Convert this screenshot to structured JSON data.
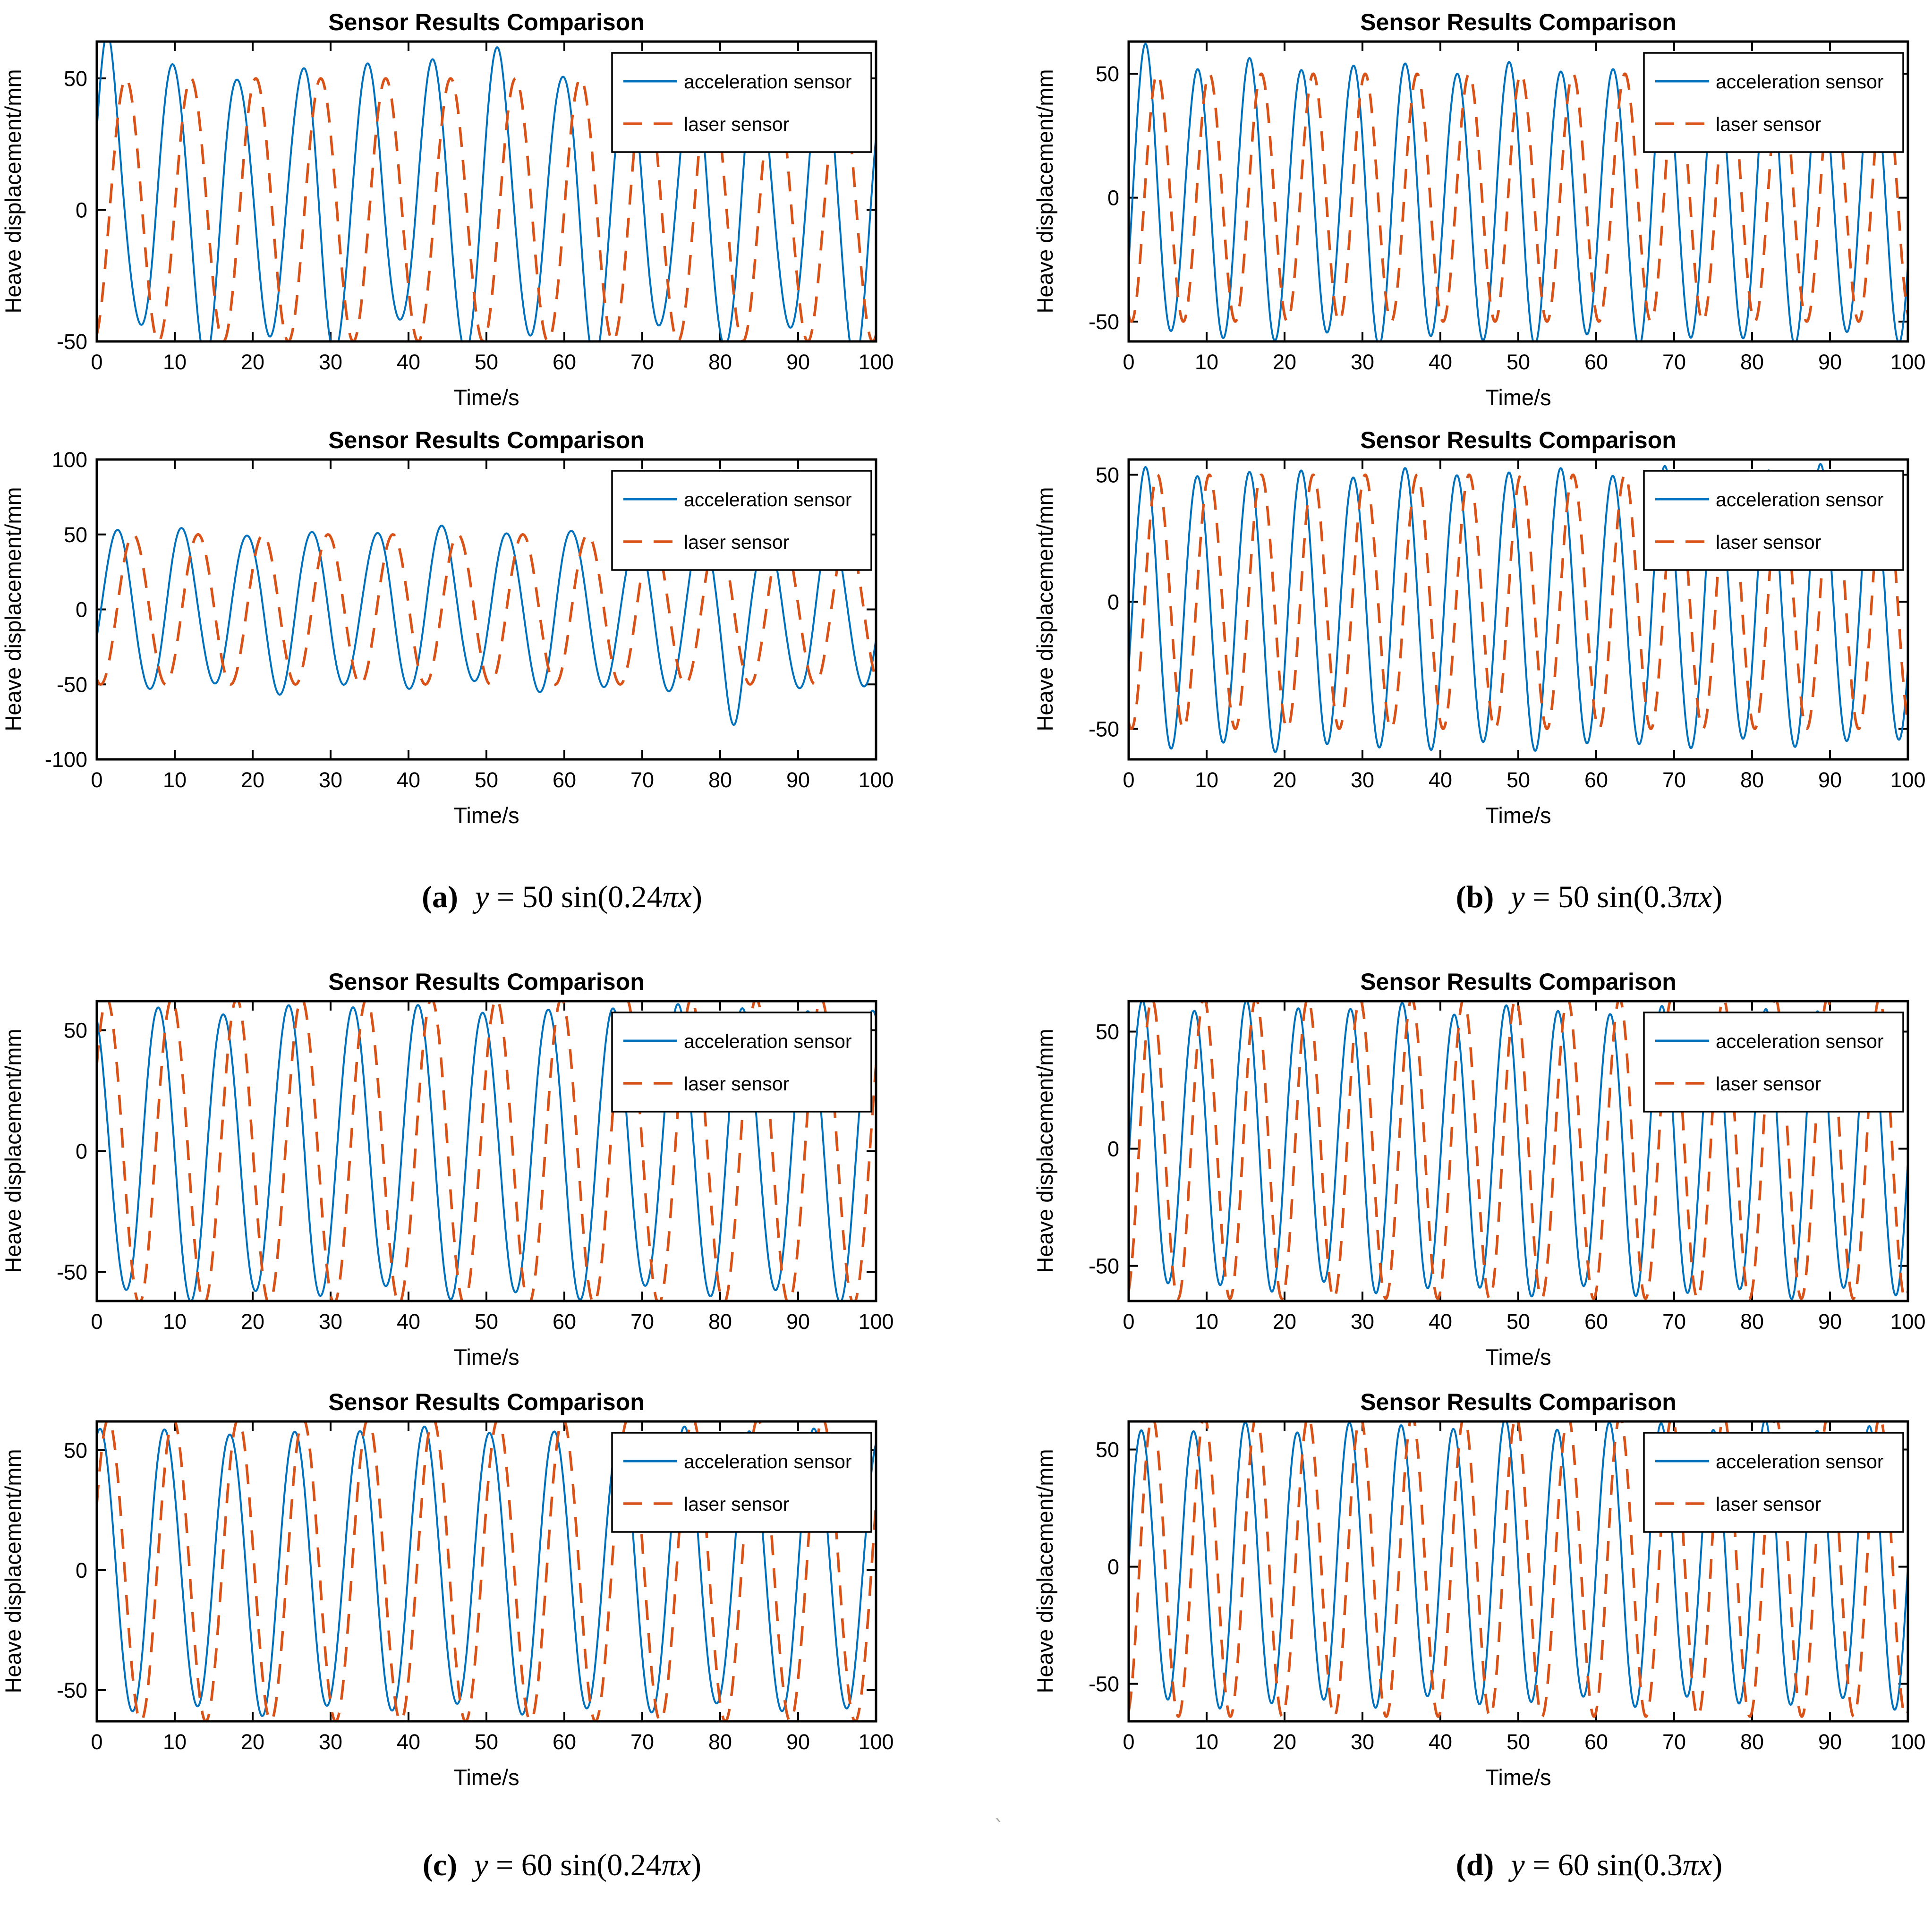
{
  "page": {
    "background": "#ffffff",
    "stray_mark": "`"
  },
  "captions": [
    {
      "label": "(a)",
      "var": "y",
      "mid": " = 50 sin(0.24",
      "pi_var": "πx",
      "end": ")"
    },
    {
      "label": "(b)",
      "var": "y",
      "mid": " = 50 sin(0.3",
      "pi_var": "πx",
      "end": ")"
    },
    {
      "label": "(c)",
      "var": "y",
      "mid": " = 60 sin(0.24",
      "pi_var": "πx",
      "end": ")"
    },
    {
      "label": "(d)",
      "var": "y",
      "mid": " = 60 sin(0.3",
      "pi_var": "πx",
      "end": ")"
    }
  ],
  "chart_data": [
    {
      "id": "a-top",
      "type": "line",
      "title": "Sensor Results Comparison",
      "xlabel": "Time/s",
      "ylabel": "Heave displacement/mm",
      "xlim": [
        0,
        100
      ],
      "xticks": [
        0,
        10,
        20,
        30,
        40,
        50,
        60,
        70,
        80,
        90,
        100
      ],
      "ylim": [
        -50,
        64
      ],
      "yticks": [
        -50,
        0,
        50
      ],
      "legend": {
        "position": "upper-right",
        "entries": [
          "acceleration sensor",
          "laser sensor"
        ]
      },
      "series": [
        {
          "name": "acceleration sensor",
          "color": "#0072BD",
          "line_style": "solid",
          "line_width": 4,
          "model": {
            "kind": "sine",
            "amplitude": 52,
            "omega_pi_coeff": 0.24,
            "phase_rad": 0.5,
            "offset": 2,
            "amp_jitter": 0.16,
            "jitter_seed": 3,
            "anomalies": [
              {
                "t": 1.4,
                "scale": 1.22
              },
              {
                "t": 52,
                "scale": 1.2
              },
              {
                "t": 93.5,
                "scale": 1.18
              }
            ]
          }
        },
        {
          "name": "laser sensor",
          "color": "#D95319",
          "line_style": "dashed",
          "line_width": 5.5,
          "model": {
            "kind": "sine",
            "amplitude": 50,
            "omega_pi_coeff": 0.24,
            "phase_rad": -1.25,
            "offset": 0,
            "amp_jitter": 0,
            "jitter_seed": 0,
            "anomalies": []
          }
        }
      ]
    },
    {
      "id": "a-bottom",
      "type": "line",
      "title": "Sensor Results Comparison",
      "xlabel": "Time/s",
      "ylabel": "Heave displacement/mm",
      "xlim": [
        0,
        100
      ],
      "xticks": [
        0,
        10,
        20,
        30,
        40,
        50,
        60,
        70,
        80,
        90,
        100
      ],
      "ylim": [
        -100,
        100
      ],
      "yticks": [
        -100,
        -50,
        0,
        50,
        100
      ],
      "legend": {
        "position": "upper-right",
        "entries": [
          "acceleration sensor",
          "laser sensor"
        ]
      },
      "series": [
        {
          "name": "acceleration sensor",
          "color": "#0072BD",
          "line_style": "solid",
          "line_width": 4,
          "model": {
            "kind": "sine",
            "amplitude": 52,
            "omega_pi_coeff": 0.24,
            "phase_rad": -0.4,
            "offset": 0,
            "amp_jitter": 0.1,
            "jitter_seed": 5,
            "anomalies": [
              {
                "t": 81.8,
                "scale": 1.6
              }
            ]
          }
        },
        {
          "name": "laser sensor",
          "color": "#D95319",
          "line_style": "dashed",
          "line_width": 5.5,
          "model": {
            "kind": "sine",
            "amplitude": 50,
            "omega_pi_coeff": 0.24,
            "phase_rad": -1.95,
            "offset": 0,
            "amp_jitter": 0,
            "jitter_seed": 0,
            "anomalies": []
          }
        }
      ]
    },
    {
      "id": "b-top",
      "type": "line",
      "title": "Sensor Results Comparison",
      "xlabel": "Time/s",
      "ylabel": "Heave displacement/mm",
      "xlim": [
        0,
        100
      ],
      "xticks": [
        0,
        10,
        20,
        30,
        40,
        50,
        60,
        70,
        80,
        90,
        100
      ],
      "ylim": [
        -58,
        63
      ],
      "yticks": [
        -50,
        0,
        50
      ],
      "legend": {
        "position": "upper-right",
        "entries": [
          "acceleration sensor",
          "laser sensor"
        ]
      },
      "series": [
        {
          "name": "acceleration sensor",
          "color": "#0072BD",
          "line_style": "solid",
          "line_width": 4,
          "model": {
            "kind": "sine",
            "amplitude": 55,
            "omega_pi_coeff": 0.3,
            "phase_rad": -0.45,
            "offset": -1,
            "amp_jitter": 0.08,
            "jitter_seed": 2,
            "anomalies": [
              {
                "t": 2.1,
                "scale": 1.12
              }
            ]
          }
        },
        {
          "name": "laser sensor",
          "color": "#D95319",
          "line_style": "dashed",
          "line_width": 5.5,
          "model": {
            "kind": "sine",
            "amplitude": 50,
            "omega_pi_coeff": 0.3,
            "phase_rad": -1.9,
            "offset": 0,
            "amp_jitter": 0,
            "jitter_seed": 0,
            "anomalies": []
          }
        }
      ]
    },
    {
      "id": "b-bottom",
      "type": "line",
      "title": "Sensor Results Comparison",
      "xlabel": "Time/s",
      "ylabel": "Heave displacement/mm",
      "xlim": [
        0,
        100
      ],
      "xticks": [
        0,
        10,
        20,
        30,
        40,
        50,
        60,
        70,
        80,
        90,
        100
      ],
      "ylim": [
        -62,
        56
      ],
      "yticks": [
        -50,
        0,
        50
      ],
      "legend": {
        "position": "upper-right",
        "entries": [
          "acceleration sensor",
          "laser sensor"
        ]
      },
      "series": [
        {
          "name": "acceleration sensor",
          "color": "#0072BD",
          "line_style": "solid",
          "line_width": 4,
          "model": {
            "kind": "sine",
            "amplitude": 54,
            "omega_pi_coeff": 0.3,
            "phase_rad": -0.45,
            "offset": -2,
            "amp_jitter": 0.06,
            "jitter_seed": 7,
            "anomalies": []
          }
        },
        {
          "name": "laser sensor",
          "color": "#D95319",
          "line_style": "dashed",
          "line_width": 5.5,
          "model": {
            "kind": "sine",
            "amplitude": 50,
            "omega_pi_coeff": 0.3,
            "phase_rad": -1.9,
            "offset": 0,
            "amp_jitter": 0,
            "jitter_seed": 0,
            "anomalies": []
          }
        }
      ]
    },
    {
      "id": "c-top",
      "type": "line",
      "title": "Sensor Results Comparison",
      "xlabel": "Time/s",
      "ylabel": "Heave displacement/mm",
      "xlim": [
        0,
        100
      ],
      "xticks": [
        0,
        10,
        20,
        30,
        40,
        50,
        60,
        70,
        80,
        90,
        100
      ],
      "ylim": [
        -62,
        62
      ],
      "yticks": [
        -50,
        0,
        50
      ],
      "legend": {
        "position": "upper-right",
        "entries": [
          "acceleration sensor",
          "laser sensor"
        ]
      },
      "series": [
        {
          "name": "acceleration sensor",
          "color": "#0072BD",
          "line_style": "solid",
          "line_width": 4,
          "model": {
            "kind": "sine",
            "amplitude": 59,
            "omega_pi_coeff": 0.24,
            "phase_rad": 1.9,
            "offset": 0,
            "amp_jitter": 0.06,
            "jitter_seed": 4,
            "anomalies": []
          }
        },
        {
          "name": "laser sensor",
          "color": "#D95319",
          "line_style": "dashed",
          "line_width": 5.5,
          "model": {
            "kind": "sine",
            "amplitude": 63,
            "omega_pi_coeff": 0.24,
            "phase_rad": 0.6,
            "offset": 0,
            "amp_jitter": 0,
            "jitter_seed": 0,
            "anomalies": []
          }
        }
      ]
    },
    {
      "id": "c-bottom",
      "type": "line",
      "title": "Sensor Results Comparison",
      "xlabel": "Time/s",
      "ylabel": "Heave displacement/mm",
      "xlim": [
        0,
        100
      ],
      "xticks": [
        0,
        10,
        20,
        30,
        40,
        50,
        60,
        70,
        80,
        90,
        100
      ],
      "ylim": [
        -63,
        62
      ],
      "yticks": [
        -50,
        0,
        50
      ],
      "legend": {
        "position": "upper-right",
        "entries": [
          "acceleration sensor",
          "laser sensor"
        ]
      },
      "series": [
        {
          "name": "acceleration sensor",
          "color": "#0072BD",
          "line_style": "solid",
          "line_width": 4,
          "model": {
            "kind": "sine",
            "amplitude": 58,
            "omega_pi_coeff": 0.24,
            "phase_rad": 1.27,
            "offset": 0,
            "amp_jitter": 0.05,
            "jitter_seed": 6,
            "anomalies": []
          }
        },
        {
          "name": "laser sensor",
          "color": "#D95319",
          "line_style": "dashed",
          "line_width": 5.5,
          "model": {
            "kind": "sine",
            "amplitude": 63,
            "omega_pi_coeff": 0.24,
            "phase_rad": 0.45,
            "offset": 0,
            "amp_jitter": 0,
            "jitter_seed": 0,
            "anomalies": []
          }
        }
      ]
    },
    {
      "id": "d-top",
      "type": "line",
      "title": "Sensor Results Comparison",
      "xlabel": "Time/s",
      "ylabel": "Heave displacement/mm",
      "xlim": [
        0,
        100
      ],
      "xticks": [
        0,
        10,
        20,
        30,
        40,
        50,
        60,
        70,
        80,
        90,
        100
      ],
      "ylim": [
        -65,
        63
      ],
      "yticks": [
        -50,
        0,
        50
      ],
      "legend": {
        "position": "upper-right",
        "entries": [
          "acceleration sensor",
          "laser sensor"
        ]
      },
      "series": [
        {
          "name": "acceleration sensor",
          "color": "#0072BD",
          "line_style": "solid",
          "line_width": 4,
          "model": {
            "kind": "sine",
            "amplitude": 60,
            "omega_pi_coeff": 0.3,
            "phase_rad": -0.08,
            "offset": 0,
            "amp_jitter": 0.07,
            "jitter_seed": 8,
            "anomalies": []
          }
        },
        {
          "name": "laser sensor",
          "color": "#D95319",
          "line_style": "dashed",
          "line_width": 5.5,
          "model": {
            "kind": "sine",
            "amplitude": 64,
            "omega_pi_coeff": 0.3,
            "phase_rad": -1.25,
            "offset": 0,
            "amp_jitter": 0,
            "jitter_seed": 0,
            "anomalies": []
          }
        }
      ]
    },
    {
      "id": "d-bottom",
      "type": "line",
      "title": "Sensor Results Comparison",
      "xlabel": "Time/s",
      "ylabel": "Heave displacement/mm",
      "xlim": [
        0,
        100
      ],
      "xticks": [
        0,
        10,
        20,
        30,
        40,
        50,
        60,
        70,
        80,
        90,
        100
      ],
      "ylim": [
        -66,
        62
      ],
      "yticks": [
        -50,
        0,
        50
      ],
      "legend": {
        "position": "upper-right",
        "entries": [
          "acceleration sensor",
          "laser sensor"
        ]
      },
      "series": [
        {
          "name": "acceleration sensor",
          "color": "#0072BD",
          "line_style": "solid",
          "line_width": 4,
          "model": {
            "kind": "sine",
            "amplitude": 59,
            "omega_pi_coeff": 0.3,
            "phase_rad": 0.0,
            "offset": 0,
            "amp_jitter": 0.07,
            "jitter_seed": 9,
            "anomalies": []
          }
        },
        {
          "name": "laser sensor",
          "color": "#D95319",
          "line_style": "dashed",
          "line_width": 5.5,
          "model": {
            "kind": "sine",
            "amplitude": 64,
            "omega_pi_coeff": 0.3,
            "phase_rad": -1.3,
            "offset": 0,
            "amp_jitter": 0,
            "jitter_seed": 0,
            "anomalies": []
          }
        }
      ]
    }
  ]
}
